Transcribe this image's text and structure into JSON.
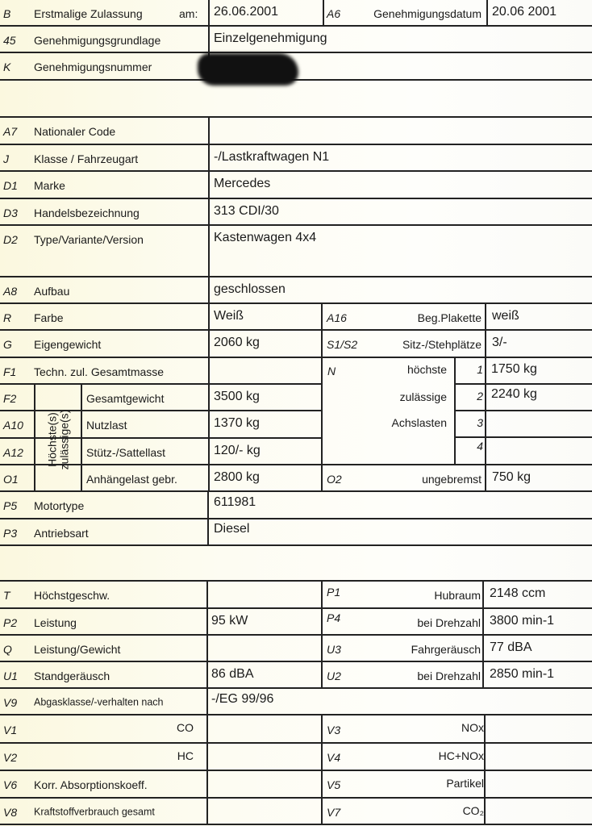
{
  "b": {
    "code": "B",
    "label": "Erstmalige Zulassung",
    "am": "am:",
    "value": "26.06.2001",
    "code2": "A6",
    "label2": "Genehmigungsdatum",
    "value2": "20.06 2001"
  },
  "a5": {
    "code": "45",
    "label": "Genehmigungsgrundlage",
    "value": "Einzelgenehmigung"
  },
  "k": {
    "code": "K",
    "label": "Genehmigungsnummer"
  },
  "a7": {
    "code": "A7",
    "label": "Nationaler Code"
  },
  "j": {
    "code": "J",
    "label": "Klasse / Fahrzeugart",
    "value": "-/Lastkraftwagen N1"
  },
  "d1": {
    "code": "D1",
    "label": "Marke",
    "value": "Mercedes"
  },
  "d3": {
    "code": "D3",
    "label": "Handelsbezeichnung",
    "value": "313 CDI/30"
  },
  "d2": {
    "code": "D2",
    "label": "Type/Variante/Version",
    "value": "Kastenwagen 4x4"
  },
  "a8": {
    "code": "A8",
    "label": "Aufbau",
    "value": "geschlossen"
  },
  "r": {
    "code": "R",
    "label": "Farbe",
    "value": "Weiß",
    "code2": "A16",
    "label2": "Beg.Plakette",
    "value2": "weiß"
  },
  "g": {
    "code": "G",
    "label": "Eigengewicht",
    "value": "2060  kg",
    "code2": "S1/S2",
    "label2": "Sitz-/Stehplätze",
    "value2": "3/-"
  },
  "f1": {
    "code": "F1",
    "label": "Techn. zul. Gesamtmasse"
  },
  "n": {
    "code": "N",
    "l1": "höchste",
    "l2": "zulässige",
    "l3": "Achslasten",
    "axles": [
      {
        "n": "1",
        "v": "1750 kg"
      },
      {
        "n": "2",
        "v": "2240 kg"
      },
      {
        "n": "3",
        "v": ""
      },
      {
        "n": "4",
        "v": ""
      }
    ]
  },
  "hz": {
    "label": "Höchste(s) zulässige(s)"
  },
  "f2": {
    "code": "F2",
    "label": "Gesamtgewicht",
    "value": "3500  kg"
  },
  "a10": {
    "code": "A10",
    "label": "Nutzlast",
    "value": "1370  kg"
  },
  "a12": {
    "code": "A12",
    "label": "Stütz-/Sattellast",
    "value": "120/- kg"
  },
  "o1": {
    "code": "O1",
    "label": "Anhängelast gebr.",
    "value": "2800 kg",
    "code2": "O2",
    "label2": "ungebremst",
    "value2": "750 kg"
  },
  "p5": {
    "code": "P5",
    "label": "Motortype",
    "value": "611981"
  },
  "p3": {
    "code": "P3",
    "label": "Antriebsart",
    "value": "Diesel"
  },
  "t": {
    "code": "T",
    "label": "Höchstgeschw.",
    "code2": "P1",
    "label2": "Hubraum",
    "value2": "2148 ccm"
  },
  "p2": {
    "code": "P2",
    "label": "Leistung",
    "value": "95 kW",
    "code2": "P4",
    "label2": "bei Drehzahl",
    "value2": "3800 min-1"
  },
  "q": {
    "code": "Q",
    "label": "Leistung/Gewicht",
    "code2": "U3",
    "label2": "Fahrgeräusch",
    "value2": "77 dBA"
  },
  "u1": {
    "code": "U1",
    "label": "Standgeräusch",
    "value": "86 dBA",
    "code2": "U2",
    "label2": "bei Drehzahl",
    "value2": "2850 min-1"
  },
  "v9": {
    "code": "V9",
    "label": "Abgasklasse/-verhalten nach",
    "value": "-/EG 99/96"
  },
  "v1": {
    "code": "V1",
    "label": "CO",
    "code2": "V3",
    "label2": "NOx"
  },
  "v2": {
    "code": "V2",
    "label": "HC",
    "code2": "V4",
    "label2": "HC+NOx"
  },
  "v6": {
    "code": "V6",
    "label": "Korr. Absorptionskoeff.",
    "code2": "V5",
    "label2": "Partikel"
  },
  "v8": {
    "code": "V8",
    "label": "Kraftstoffverbrauch gesamt",
    "code2": "V7",
    "label2": "CO₂"
  }
}
